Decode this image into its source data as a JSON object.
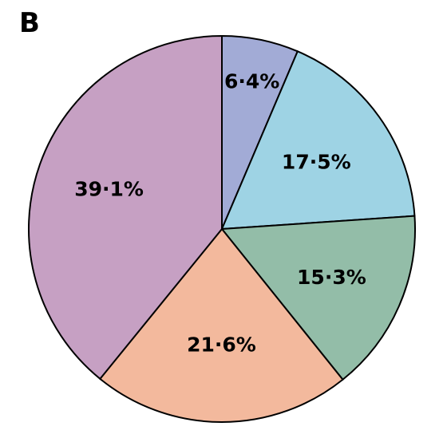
{
  "panel_label": "B",
  "chart_data": {
    "type": "pie",
    "start": "12 o'clock",
    "direction": "clockwise",
    "slices": [
      {
        "label": "6·4%",
        "value": 6.4,
        "color": "#a2abd6"
      },
      {
        "label": "17·5%",
        "value": 17.5,
        "color": "#9ed3e4"
      },
      {
        "label": "15·3%",
        "value": 15.3,
        "color": "#93bda8"
      },
      {
        "label": "21·6%",
        "value": 21.6,
        "color": "#f3b99d"
      },
      {
        "label": "39·1%",
        "value": 39.1,
        "color": "#c6a0c3"
      }
    ]
  }
}
